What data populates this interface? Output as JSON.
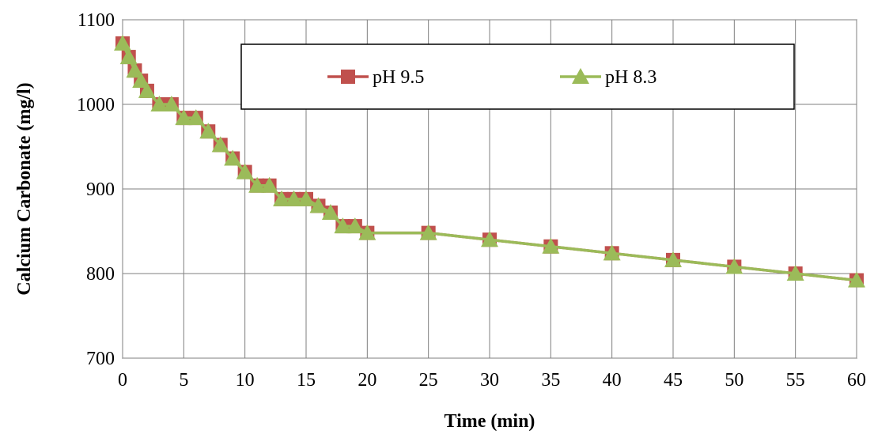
{
  "chart_data": {
    "type": "line",
    "title": "",
    "xlabel": "Time (min)",
    "ylabel": "Calcium Carbonate (mg/l)",
    "xlim": [
      0,
      60
    ],
    "ylim": [
      700,
      1100
    ],
    "xticks": [
      0,
      5,
      10,
      15,
      20,
      25,
      30,
      35,
      40,
      45,
      50,
      55,
      60
    ],
    "yticks": [
      700,
      800,
      900,
      1000,
      1100
    ],
    "grid": true,
    "legend_position": "top-center",
    "series": [
      {
        "name": "pH 9.5",
        "color": "#c0504d",
        "marker": "square",
        "x": [
          0,
          0.5,
          1,
          1.5,
          2,
          3,
          4,
          5,
          6,
          7,
          8,
          9,
          10,
          11,
          12,
          13,
          14,
          15,
          16,
          17,
          18,
          19,
          20,
          25,
          30,
          35,
          40,
          45,
          50,
          55,
          60
        ],
        "y": [
          1072,
          1056,
          1040,
          1028,
          1016,
          1000,
          1000,
          984,
          984,
          968,
          952,
          936,
          920,
          904,
          904,
          888,
          888,
          888,
          880,
          872,
          856,
          856,
          848,
          848,
          840,
          832,
          824,
          816,
          808,
          800,
          792
        ]
      },
      {
        "name": "pH 8.3",
        "color": "#9bbb59",
        "marker": "triangle",
        "x": [
          0,
          0.5,
          1,
          1.5,
          2,
          3,
          4,
          5,
          6,
          7,
          8,
          9,
          10,
          11,
          12,
          13,
          14,
          15,
          16,
          17,
          18,
          19,
          20,
          25,
          30,
          35,
          40,
          45,
          50,
          55,
          60
        ],
        "y": [
          1072,
          1056,
          1040,
          1028,
          1016,
          1000,
          1000,
          984,
          984,
          968,
          952,
          936,
          920,
          904,
          904,
          888,
          888,
          888,
          880,
          872,
          856,
          856,
          848,
          848,
          840,
          832,
          824,
          816,
          808,
          800,
          792
        ]
      }
    ]
  }
}
